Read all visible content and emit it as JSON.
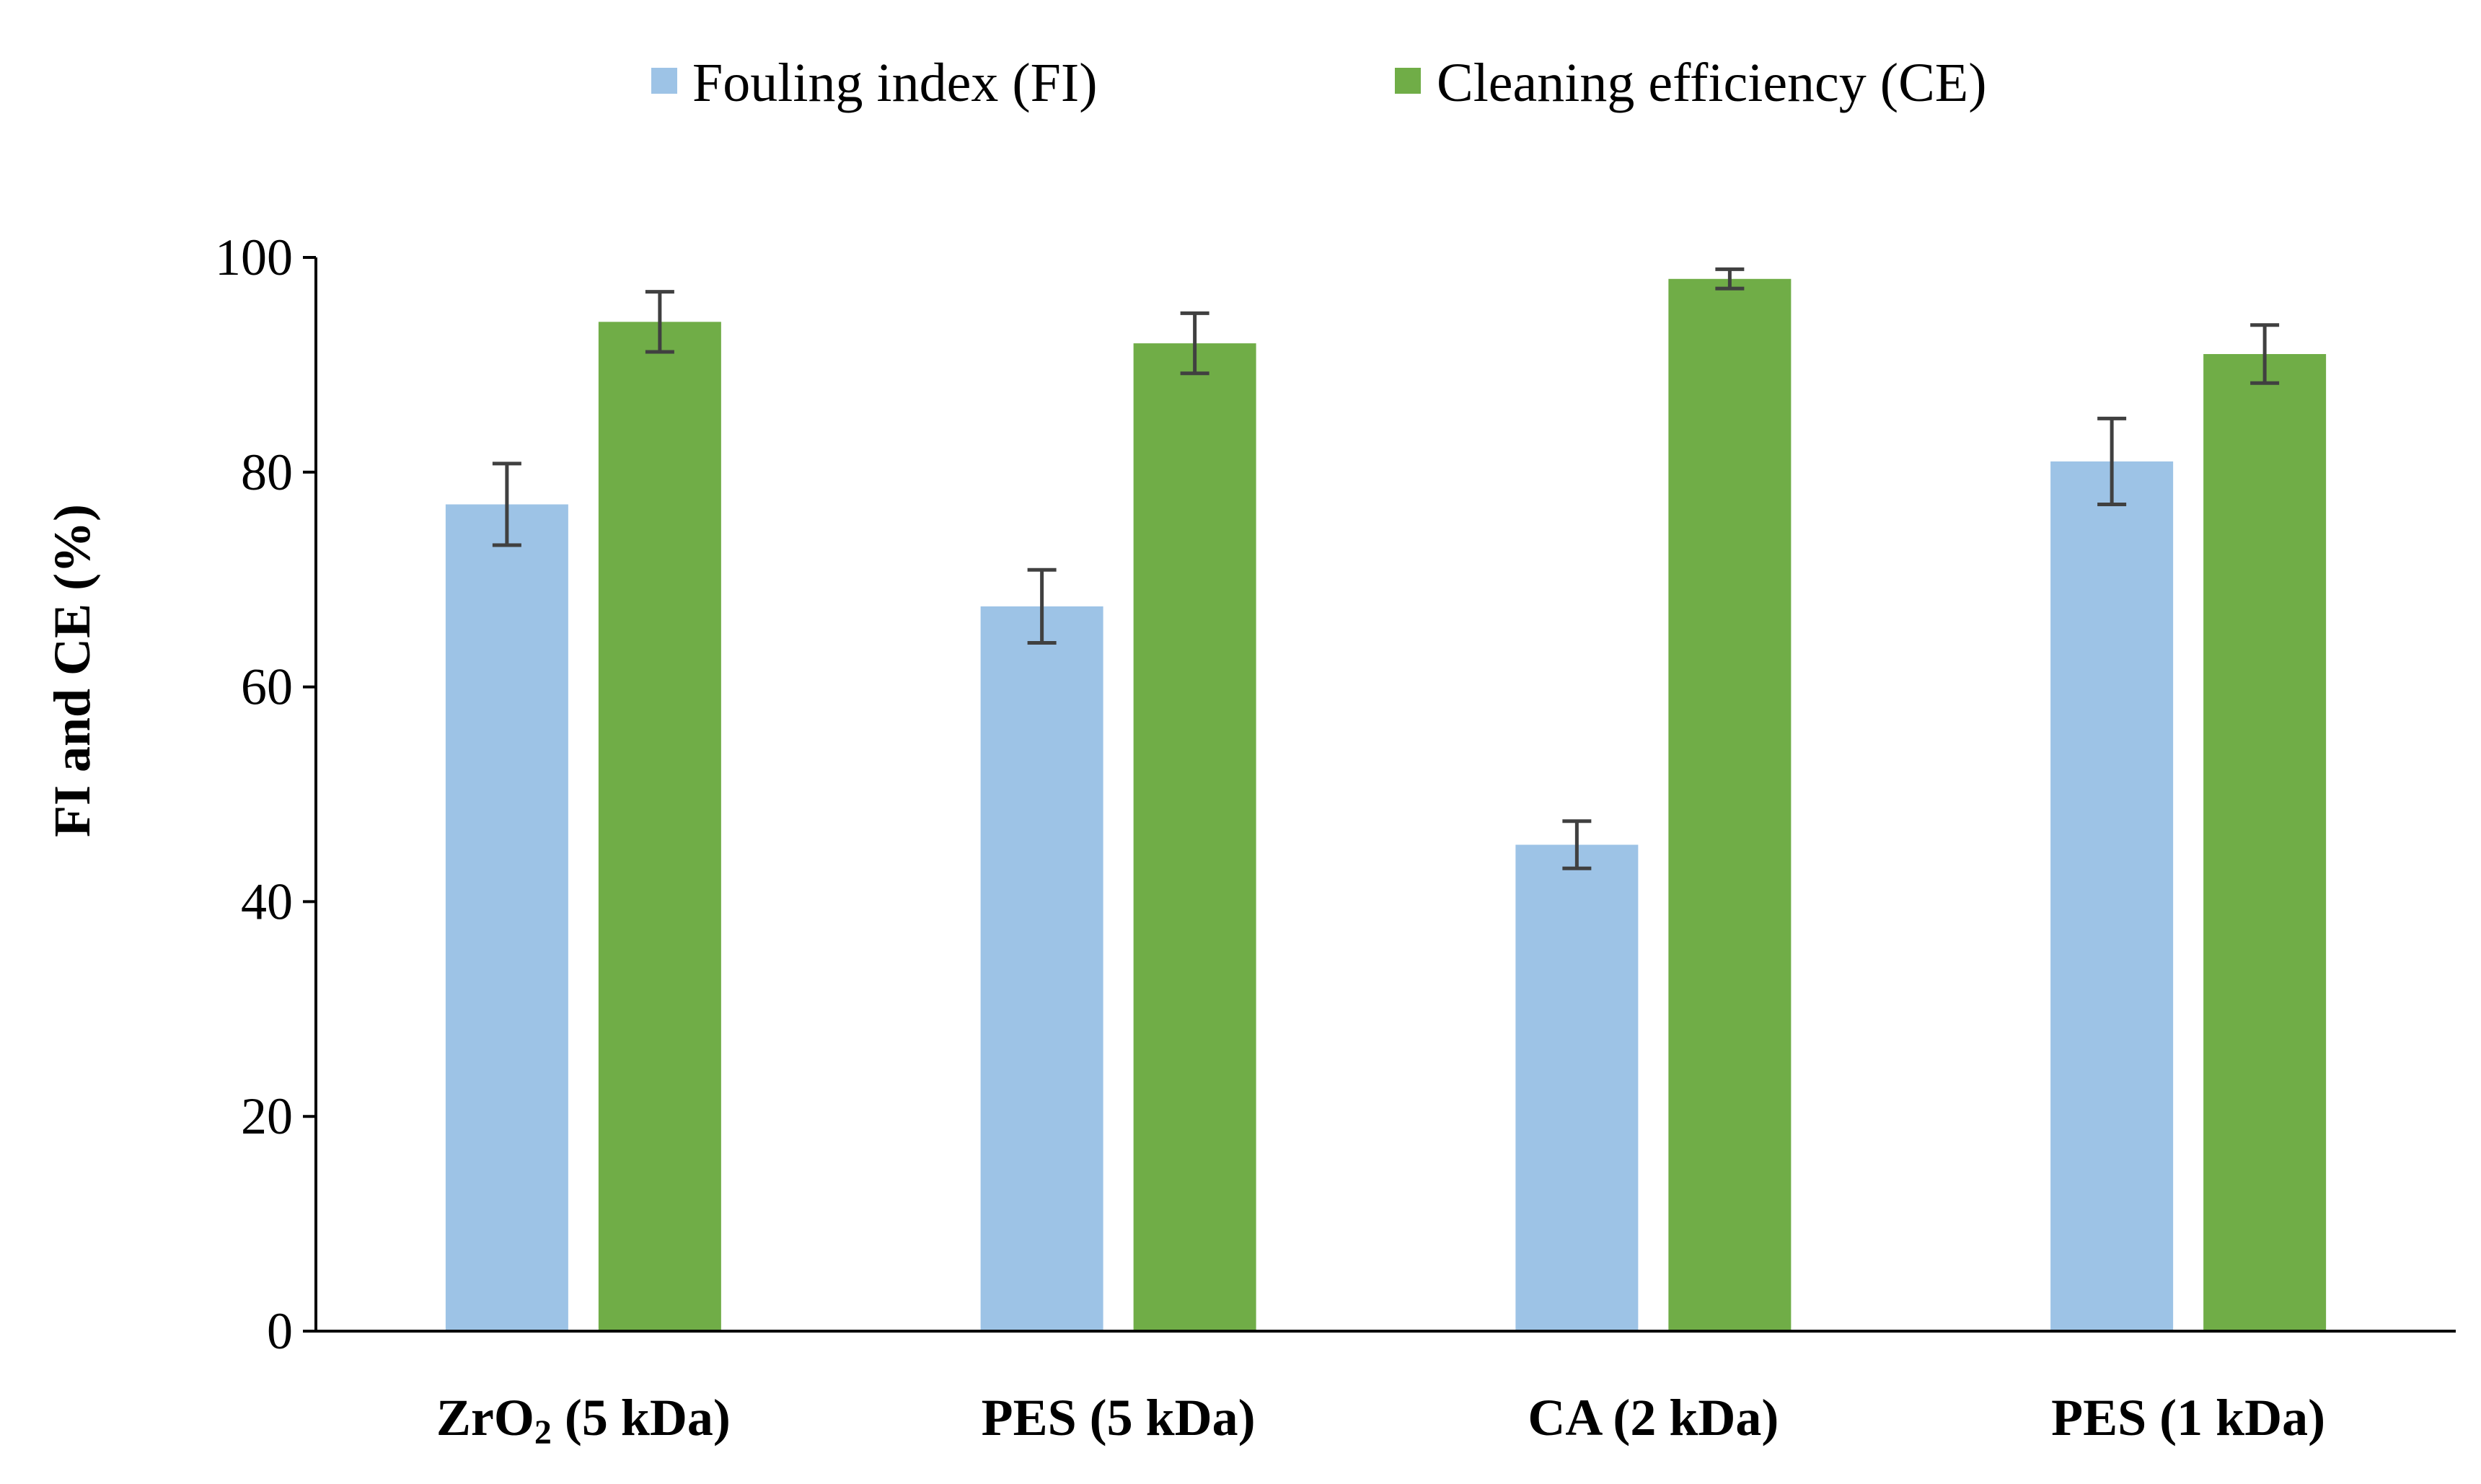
{
  "chart_data": {
    "type": "bar",
    "categories": [
      {
        "main": "ZrO",
        "sub": "2",
        "rest": " (5 kDa)"
      },
      {
        "main": "PES (5 kDa)",
        "sub": "",
        "rest": ""
      },
      {
        "main": "CA (2 kDa)",
        "sub": "",
        "rest": ""
      },
      {
        "main": "PES (1 kDa)",
        "sub": "",
        "rest": ""
      }
    ],
    "series": [
      {
        "name": "Fouling index (FI)",
        "color": "#9DC3E6",
        "values": [
          77,
          67.5,
          45.3,
          81
        ],
        "errors": [
          3.8,
          3.4,
          2.2,
          4
        ]
      },
      {
        "name": "Cleaning efficiency (CE)",
        "color": "#70AD47",
        "values": [
          94,
          92,
          98,
          91
        ],
        "errors": [
          2.8,
          2.8,
          0.9,
          2.7
        ]
      }
    ],
    "ylabel": "FI and CE  (%)",
    "xlabel": "",
    "ylim": [
      0,
      100
    ],
    "yticks": [
      "0",
      "20",
      "40",
      "60",
      "80",
      "100"
    ],
    "legend_position": "top-center",
    "grid": false,
    "error_bar_color": "#404040"
  }
}
